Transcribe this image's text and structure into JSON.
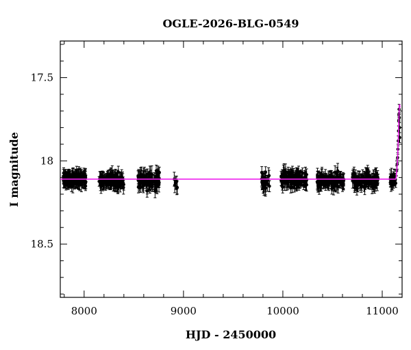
{
  "chart_data": {
    "type": "scatter",
    "title": "OGLE-2026-BLG-0549",
    "xlabel": "HJD - 2450000",
    "ylabel": "I magnitude",
    "xlim": [
      7760,
      11200
    ],
    "ylim": [
      18.82,
      17.28
    ],
    "y_inverted": true,
    "x_ticks": [
      8000,
      9000,
      10000,
      11000
    ],
    "y_ticks": [
      17.5,
      18,
      18.5
    ],
    "grid": false,
    "colors": {
      "points": "#000000",
      "model": "#ee22ee"
    },
    "model_baseline_mag": 18.11,
    "seasons": [
      {
        "x_start": 7790,
        "x_end": 8020,
        "n": 150,
        "y_mean": 18.11,
        "y_sd": 0.025,
        "err": 0.035
      },
      {
        "x_start": 8150,
        "x_end": 8400,
        "n": 120,
        "y_mean": 18.12,
        "y_sd": 0.03,
        "err": 0.035
      },
      {
        "x_start": 8540,
        "x_end": 8760,
        "n": 90,
        "y_mean": 18.11,
        "y_sd": 0.035,
        "err": 0.04
      },
      {
        "x_start": 8900,
        "x_end": 8940,
        "n": 6,
        "y_mean": 18.13,
        "y_sd": 0.04,
        "err": 0.04
      },
      {
        "x_start": 9780,
        "x_end": 9870,
        "n": 30,
        "y_mean": 18.12,
        "y_sd": 0.035,
        "err": 0.04
      },
      {
        "x_start": 9980,
        "x_end": 10240,
        "n": 130,
        "y_mean": 18.11,
        "y_sd": 0.03,
        "err": 0.035
      },
      {
        "x_start": 10340,
        "x_end": 10620,
        "n": 120,
        "y_mean": 18.12,
        "y_sd": 0.03,
        "err": 0.035
      },
      {
        "x_start": 10700,
        "x_end": 10960,
        "n": 110,
        "y_mean": 18.12,
        "y_sd": 0.03,
        "err": 0.035
      },
      {
        "x_start": 11080,
        "x_end": 11140,
        "n": 25,
        "y_mean": 18.11,
        "y_sd": 0.025,
        "err": 0.035
      }
    ],
    "rise_points": [
      {
        "x": 11145,
        "y": 18.06
      },
      {
        "x": 11150,
        "y": 18.02
      },
      {
        "x": 11155,
        "y": 17.98
      },
      {
        "x": 11158,
        "y": 17.93
      },
      {
        "x": 11161,
        "y": 17.88
      },
      {
        "x": 11164,
        "y": 17.82
      },
      {
        "x": 11166,
        "y": 17.76
      },
      {
        "x": 11168,
        "y": 17.72
      },
      {
        "x": 11170,
        "y": 17.69
      },
      {
        "x": 11172,
        "y": 17.74
      },
      {
        "x": 11174,
        "y": 17.8
      },
      {
        "x": 11176,
        "y": 17.86
      }
    ]
  }
}
